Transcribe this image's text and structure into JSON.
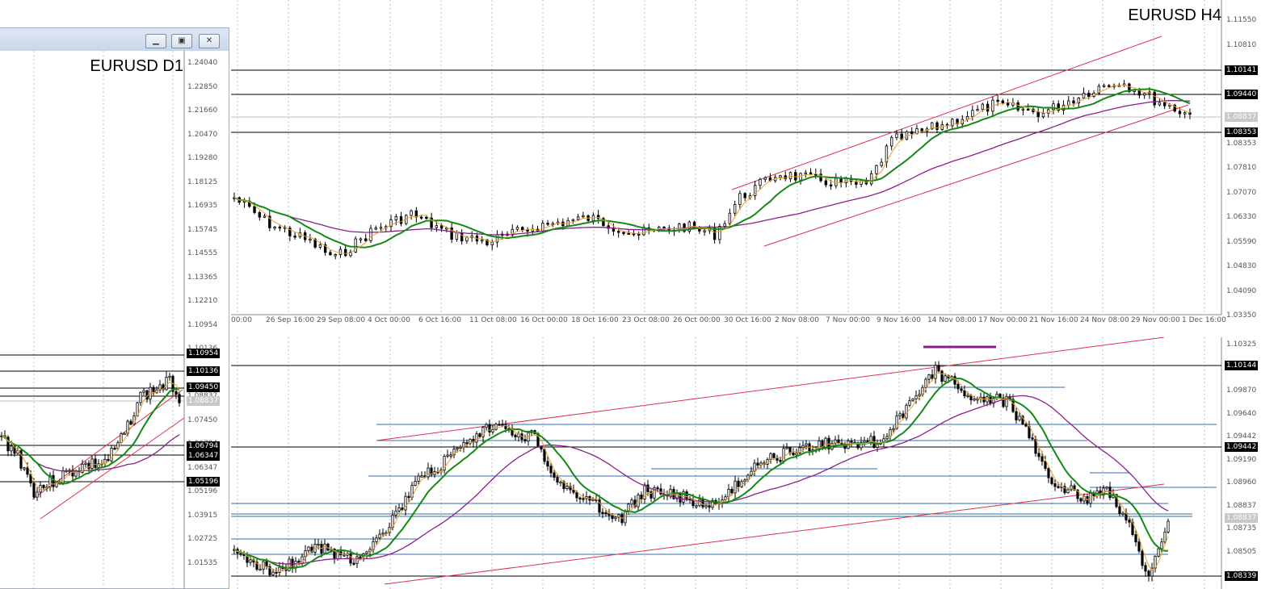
{
  "h4_chart": {
    "symbol": "EURUSD H4",
    "price_labels": [
      "1.11550",
      "1.10810",
      "1.10141",
      "1.09440",
      "1.08837",
      "1.08353",
      "1.07810",
      "1.07070",
      "1.06330",
      "1.05590",
      "1.04830",
      "1.04090",
      "1.03350"
    ],
    "time_labels": [
      "00:00",
      "26 Sep 16:00",
      "29 Sep 08:00",
      "4 Oct 00:00",
      "6 Oct 16:00",
      "11 Oct 08:00",
      "16 Oct 00:00",
      "18 Oct 16:00",
      "23 Oct 08:00",
      "26 Oct 00:00",
      "30 Oct 16:00",
      "2 Nov 08:00",
      "7 Nov 00:00",
      "9 Nov 16:00",
      "14 Nov 08:00",
      "17 Nov 00:00",
      "21 Nov 16:00",
      "24 Nov 08:00",
      "29 Nov 00:00",
      "1 Dec 16:00"
    ],
    "level_tags": {
      "l1": "1.10141",
      "l2": "1.09440",
      "bid": "1.08837",
      "l3": "1.08353"
    }
  },
  "d1_window": {
    "symbol": "EURUSD D1",
    "buttons": {
      "minimize": "▁",
      "restore": "▣",
      "close": "✕"
    },
    "price_labels": [
      "1.24040",
      "1.22850",
      "1.21660",
      "1.20470",
      "1.19280",
      "1.18125",
      "1.16935",
      "1.15745",
      "1.14555",
      "1.13365",
      "1.12210",
      "1.10954",
      "1.10136",
      "1.09450",
      "1.08837",
      "1.07450",
      "1.06794",
      "1.06347",
      "1.05196",
      "1.03915",
      "1.02725",
      "1.01535"
    ],
    "level_tags": {
      "l1": "1.10954",
      "l2": "1.10136",
      "l3": "1.09450",
      "bid": "1.08837",
      "l4": "1.06794",
      "l5": "1.06347",
      "l6": "1.05196"
    }
  },
  "lower_chart": {
    "price_labels": [
      "1.10325",
      "1.10144",
      "1.09870",
      "1.09640",
      "1.09442",
      "1.09190",
      "1.08960",
      "1.08837",
      "1.08735",
      "1.08505",
      "1.08339"
    ],
    "level_tags": {
      "l1": "1.10144",
      "l2": "1.09442",
      "bid": "1.08837",
      "l3": "1.08339"
    }
  },
  "colors": {
    "bull": "#000000",
    "bear": "#000000",
    "ma_fast": "#e8a030",
    "ma_mid": "#138a13",
    "ma_slow": "#8a1f8a",
    "trend": "#e0304a",
    "hline": "#000000",
    "blue_line": "#2f6db0"
  }
}
